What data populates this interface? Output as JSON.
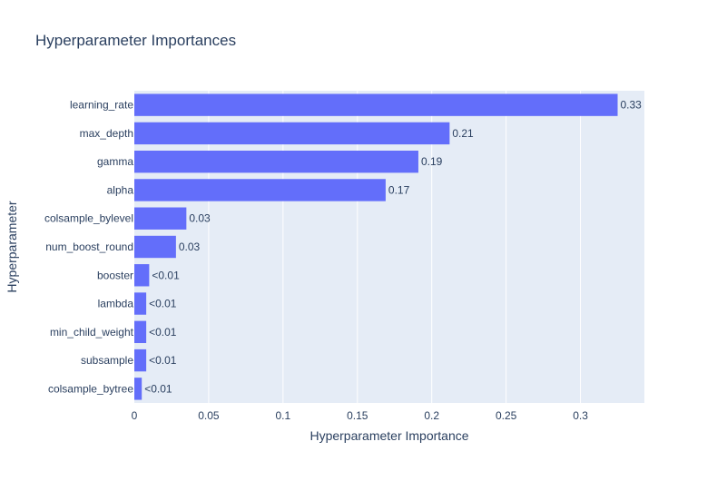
{
  "chart_data": {
    "type": "bar",
    "orientation": "horizontal",
    "title": "Hyperparameter Importances",
    "xlabel": "Hyperparameter Importance",
    "ylabel": "Hyperparameter",
    "xlim": [
      0,
      0.343
    ],
    "xticks": [
      0,
      0.05,
      0.1,
      0.15,
      0.2,
      0.25,
      0.3
    ],
    "xtick_labels": [
      "0",
      "0.05",
      "0.1",
      "0.15",
      "0.2",
      "0.25",
      "0.3"
    ],
    "grid": true,
    "categories": [
      "learning_rate",
      "max_depth",
      "gamma",
      "alpha",
      "colsample_bylevel",
      "num_boost_round",
      "booster",
      "lambda",
      "min_child_weight",
      "subsample",
      "colsample_bytree"
    ],
    "values": [
      0.325,
      0.212,
      0.191,
      0.169,
      0.035,
      0.028,
      0.01,
      0.008,
      0.008,
      0.008,
      0.005
    ],
    "labels": [
      "0.33",
      "0.21",
      "0.19",
      "0.17",
      "0.03",
      "0.03",
      "<0.01",
      "<0.01",
      "<0.01",
      "<0.01",
      "<0.01"
    ],
    "colors": {
      "bar": "#636efa",
      "plot_background": "#e5ecf6",
      "grid": "#ffffff",
      "text": "#2a3f5f"
    }
  }
}
